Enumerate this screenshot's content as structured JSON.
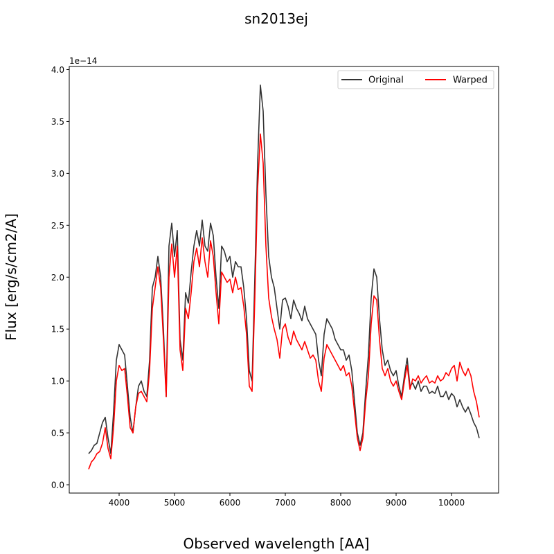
{
  "chart_data": {
    "type": "line",
    "title": "sn2013ej",
    "xlabel": "Observed wavelength [AA]",
    "ylabel": "Flux [erg/s/cm2/A]",
    "y_offset_text": "1e−14",
    "xlim": [
      3100,
      10850
    ],
    "ylim": [
      -0.08,
      4.03
    ],
    "y_scale_factor": 1e-14,
    "x_ticks": [
      4000,
      5000,
      6000,
      7000,
      8000,
      9000,
      10000
    ],
    "x_tick_labels": [
      "4000",
      "5000",
      "6000",
      "7000",
      "8000",
      "9000",
      "10000"
    ],
    "y_ticks": [
      0.0,
      0.5,
      1.0,
      1.5,
      2.0,
      2.5,
      3.0,
      3.5,
      4.0
    ],
    "y_tick_labels": [
      "0.0",
      "0.5",
      "1.0",
      "1.5",
      "2.0",
      "2.5",
      "3.0",
      "3.5",
      "4.0"
    ],
    "grid": false,
    "legend": {
      "placement": "top-right",
      "columns": 2
    },
    "series": [
      {
        "name": "Original",
        "color": "#333333",
        "x": [
          3450,
          3500,
          3550,
          3600,
          3650,
          3700,
          3750,
          3800,
          3850,
          3900,
          3950,
          4000,
          4050,
          4100,
          4150,
          4200,
          4250,
          4300,
          4350,
          4400,
          4450,
          4500,
          4550,
          4600,
          4650,
          4700,
          4750,
          4800,
          4850,
          4900,
          4950,
          5000,
          5050,
          5100,
          5150,
          5200,
          5250,
          5300,
          5350,
          5400,
          5450,
          5500,
          5550,
          5600,
          5650,
          5700,
          5750,
          5800,
          5850,
          5900,
          5950,
          6000,
          6050,
          6100,
          6150,
          6200,
          6250,
          6300,
          6350,
          6400,
          6450,
          6500,
          6550,
          6600,
          6650,
          6700,
          6750,
          6800,
          6850,
          6900,
          6950,
          7000,
          7050,
          7100,
          7150,
          7200,
          7250,
          7300,
          7350,
          7400,
          7450,
          7500,
          7550,
          7600,
          7650,
          7700,
          7750,
          7800,
          7850,
          7900,
          7950,
          8000,
          8050,
          8100,
          8150,
          8200,
          8250,
          8300,
          8350,
          8400,
          8450,
          8500,
          8550,
          8600,
          8650,
          8700,
          8750,
          8800,
          8850,
          8900,
          8950,
          9000,
          9050,
          9100,
          9150,
          9200,
          9250,
          9300,
          9350,
          9400,
          9450,
          9500,
          9550,
          9600,
          9650,
          9700,
          9750,
          9800,
          9850,
          9900,
          9950,
          10000,
          10050,
          10100,
          10150,
          10200,
          10250,
          10300,
          10350,
          10400,
          10450,
          10500
        ],
        "y": [
          0.3,
          0.33,
          0.38,
          0.4,
          0.5,
          0.6,
          0.65,
          0.45,
          0.3,
          0.7,
          1.2,
          1.35,
          1.3,
          1.25,
          0.95,
          0.65,
          0.5,
          0.75,
          0.95,
          1.0,
          0.9,
          0.85,
          1.2,
          1.9,
          2.0,
          2.2,
          2.0,
          1.5,
          0.85,
          2.3,
          2.52,
          2.2,
          2.45,
          1.4,
          1.2,
          1.85,
          1.75,
          2.05,
          2.3,
          2.45,
          2.3,
          2.55,
          2.3,
          2.25,
          2.52,
          2.4,
          2.0,
          1.7,
          2.3,
          2.25,
          2.15,
          2.2,
          2.0,
          2.15,
          2.1,
          2.1,
          1.9,
          1.6,
          1.1,
          1.0,
          2.0,
          3.1,
          3.85,
          3.6,
          2.8,
          2.2,
          2.0,
          1.9,
          1.7,
          1.5,
          1.78,
          1.8,
          1.72,
          1.6,
          1.78,
          1.7,
          1.65,
          1.58,
          1.72,
          1.6,
          1.55,
          1.5,
          1.45,
          1.2,
          1.05,
          1.45,
          1.6,
          1.55,
          1.5,
          1.4,
          1.35,
          1.3,
          1.3,
          1.2,
          1.25,
          1.1,
          0.8,
          0.5,
          0.38,
          0.5,
          0.9,
          1.25,
          1.8,
          2.08,
          2.0,
          1.6,
          1.3,
          1.15,
          1.2,
          1.1,
          1.05,
          1.1,
          0.95,
          0.85,
          1.05,
          1.22,
          0.95,
          0.98,
          0.92,
          1.0,
          0.9,
          0.95,
          0.95,
          0.88,
          0.9,
          0.88,
          0.95,
          0.85,
          0.85,
          0.9,
          0.82,
          0.88,
          0.85,
          0.75,
          0.82,
          0.75,
          0.7,
          0.75,
          0.68,
          0.6,
          0.55,
          0.45
        ]
      },
      {
        "name": "Warped",
        "color": "#ff0000",
        "x": [
          3450,
          3500,
          3550,
          3600,
          3650,
          3700,
          3750,
          3800,
          3850,
          3900,
          3950,
          4000,
          4050,
          4100,
          4150,
          4200,
          4250,
          4300,
          4350,
          4400,
          4450,
          4500,
          4550,
          4600,
          4650,
          4700,
          4750,
          4800,
          4850,
          4900,
          4950,
          5000,
          5050,
          5100,
          5150,
          5200,
          5250,
          5300,
          5350,
          5400,
          5450,
          5500,
          5550,
          5600,
          5650,
          5700,
          5750,
          5800,
          5850,
          5900,
          5950,
          6000,
          6050,
          6100,
          6150,
          6200,
          6250,
          6300,
          6350,
          6400,
          6450,
          6500,
          6550,
          6600,
          6650,
          6700,
          6750,
          6800,
          6850,
          6900,
          6950,
          7000,
          7050,
          7100,
          7150,
          7200,
          7250,
          7300,
          7350,
          7400,
          7450,
          7500,
          7550,
          7600,
          7650,
          7700,
          7750,
          7800,
          7850,
          7900,
          7950,
          8000,
          8050,
          8100,
          8150,
          8200,
          8250,
          8300,
          8350,
          8400,
          8450,
          8500,
          8550,
          8600,
          8650,
          8700,
          8750,
          8800,
          8850,
          8900,
          8950,
          9000,
          9050,
          9100,
          9150,
          9200,
          9250,
          9300,
          9350,
          9400,
          9450,
          9500,
          9550,
          9600,
          9650,
          9700,
          9750,
          9800,
          9850,
          9900,
          9950,
          10000,
          10050,
          10100,
          10150,
          10200,
          10250,
          10300,
          10350,
          10400,
          10450,
          10500
        ],
        "y": [
          0.15,
          0.22,
          0.25,
          0.3,
          0.32,
          0.4,
          0.55,
          0.35,
          0.25,
          0.55,
          1.0,
          1.15,
          1.1,
          1.12,
          0.85,
          0.55,
          0.5,
          0.75,
          0.88,
          0.9,
          0.85,
          0.8,
          1.1,
          1.7,
          1.9,
          2.1,
          1.9,
          1.4,
          0.85,
          2.0,
          2.32,
          2.0,
          2.3,
          1.3,
          1.1,
          1.7,
          1.6,
          1.85,
          2.15,
          2.28,
          2.1,
          2.38,
          2.15,
          2.0,
          2.35,
          2.2,
          1.85,
          1.55,
          2.05,
          2.0,
          1.95,
          1.98,
          1.85,
          2.0,
          1.88,
          1.9,
          1.72,
          1.45,
          0.95,
          0.9,
          1.8,
          2.85,
          3.38,
          3.1,
          2.3,
          1.8,
          1.62,
          1.5,
          1.4,
          1.22,
          1.5,
          1.55,
          1.42,
          1.35,
          1.48,
          1.4,
          1.35,
          1.3,
          1.38,
          1.3,
          1.22,
          1.25,
          1.2,
          1.0,
          0.9,
          1.22,
          1.35,
          1.3,
          1.25,
          1.2,
          1.15,
          1.1,
          1.15,
          1.05,
          1.08,
          0.95,
          0.7,
          0.45,
          0.33,
          0.45,
          0.8,
          1.05,
          1.55,
          1.82,
          1.78,
          1.4,
          1.12,
          1.05,
          1.12,
          1.0,
          0.95,
          1.0,
          0.9,
          0.82,
          1.0,
          1.15,
          0.92,
          1.02,
          1.0,
          1.05,
          0.98,
          1.02,
          1.05,
          0.98,
          1.0,
          0.98,
          1.05,
          1.0,
          1.02,
          1.08,
          1.05,
          1.12,
          1.15,
          1.0,
          1.18,
          1.1,
          1.05,
          1.12,
          1.05,
          0.9,
          0.8,
          0.65
        ]
      }
    ]
  }
}
